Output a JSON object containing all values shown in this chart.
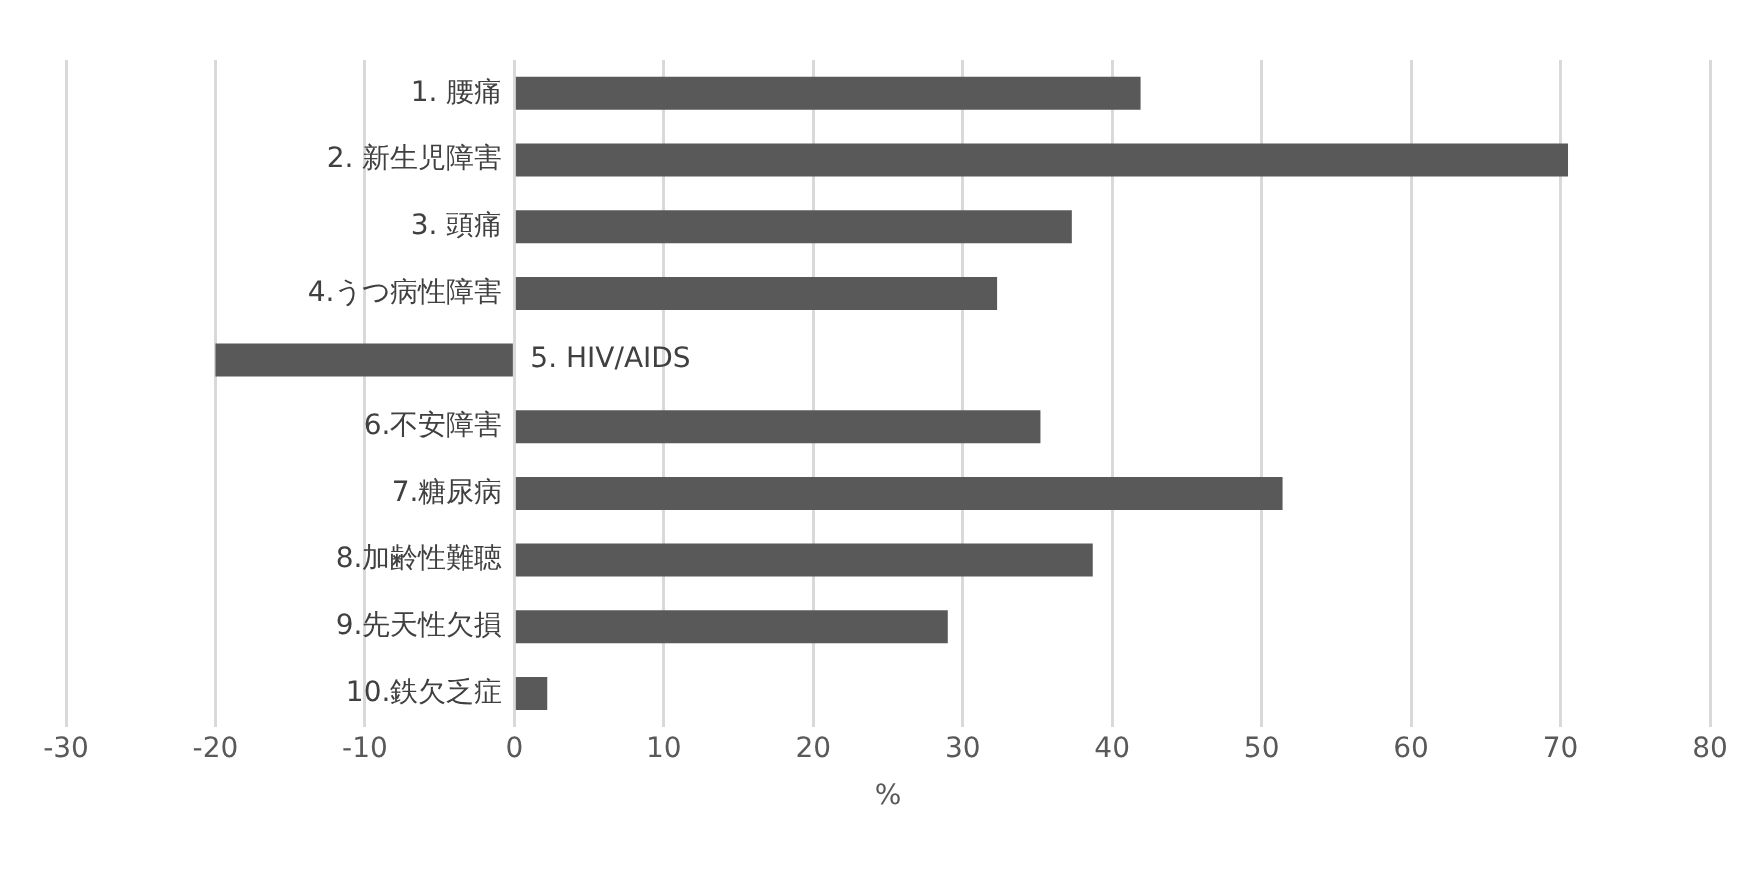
{
  "chart_data": {
    "type": "bar",
    "orientation": "horizontal",
    "xlabel": "%",
    "categories": [
      "1. 腰痛",
      "2. 新生児障害",
      "3. 頭痛",
      "4.うつ病性障害",
      "5. HIV/AIDS",
      "6.不安障害",
      "7.糖尿病",
      "8.加齢性難聴",
      "9.先天性欠損",
      "10.鉄欠乏症"
    ],
    "values": [
      41.9,
      70.5,
      37.3,
      32.3,
      -20,
      35.2,
      51.4,
      38.7,
      29.0,
      2.2
    ],
    "color": "#595959",
    "xlim": [
      -30,
      80
    ],
    "xticks": [
      -30,
      -20,
      -10,
      0,
      10,
      20,
      30,
      40,
      50,
      60,
      70,
      80
    ],
    "grid": "x",
    "legend": false
  }
}
